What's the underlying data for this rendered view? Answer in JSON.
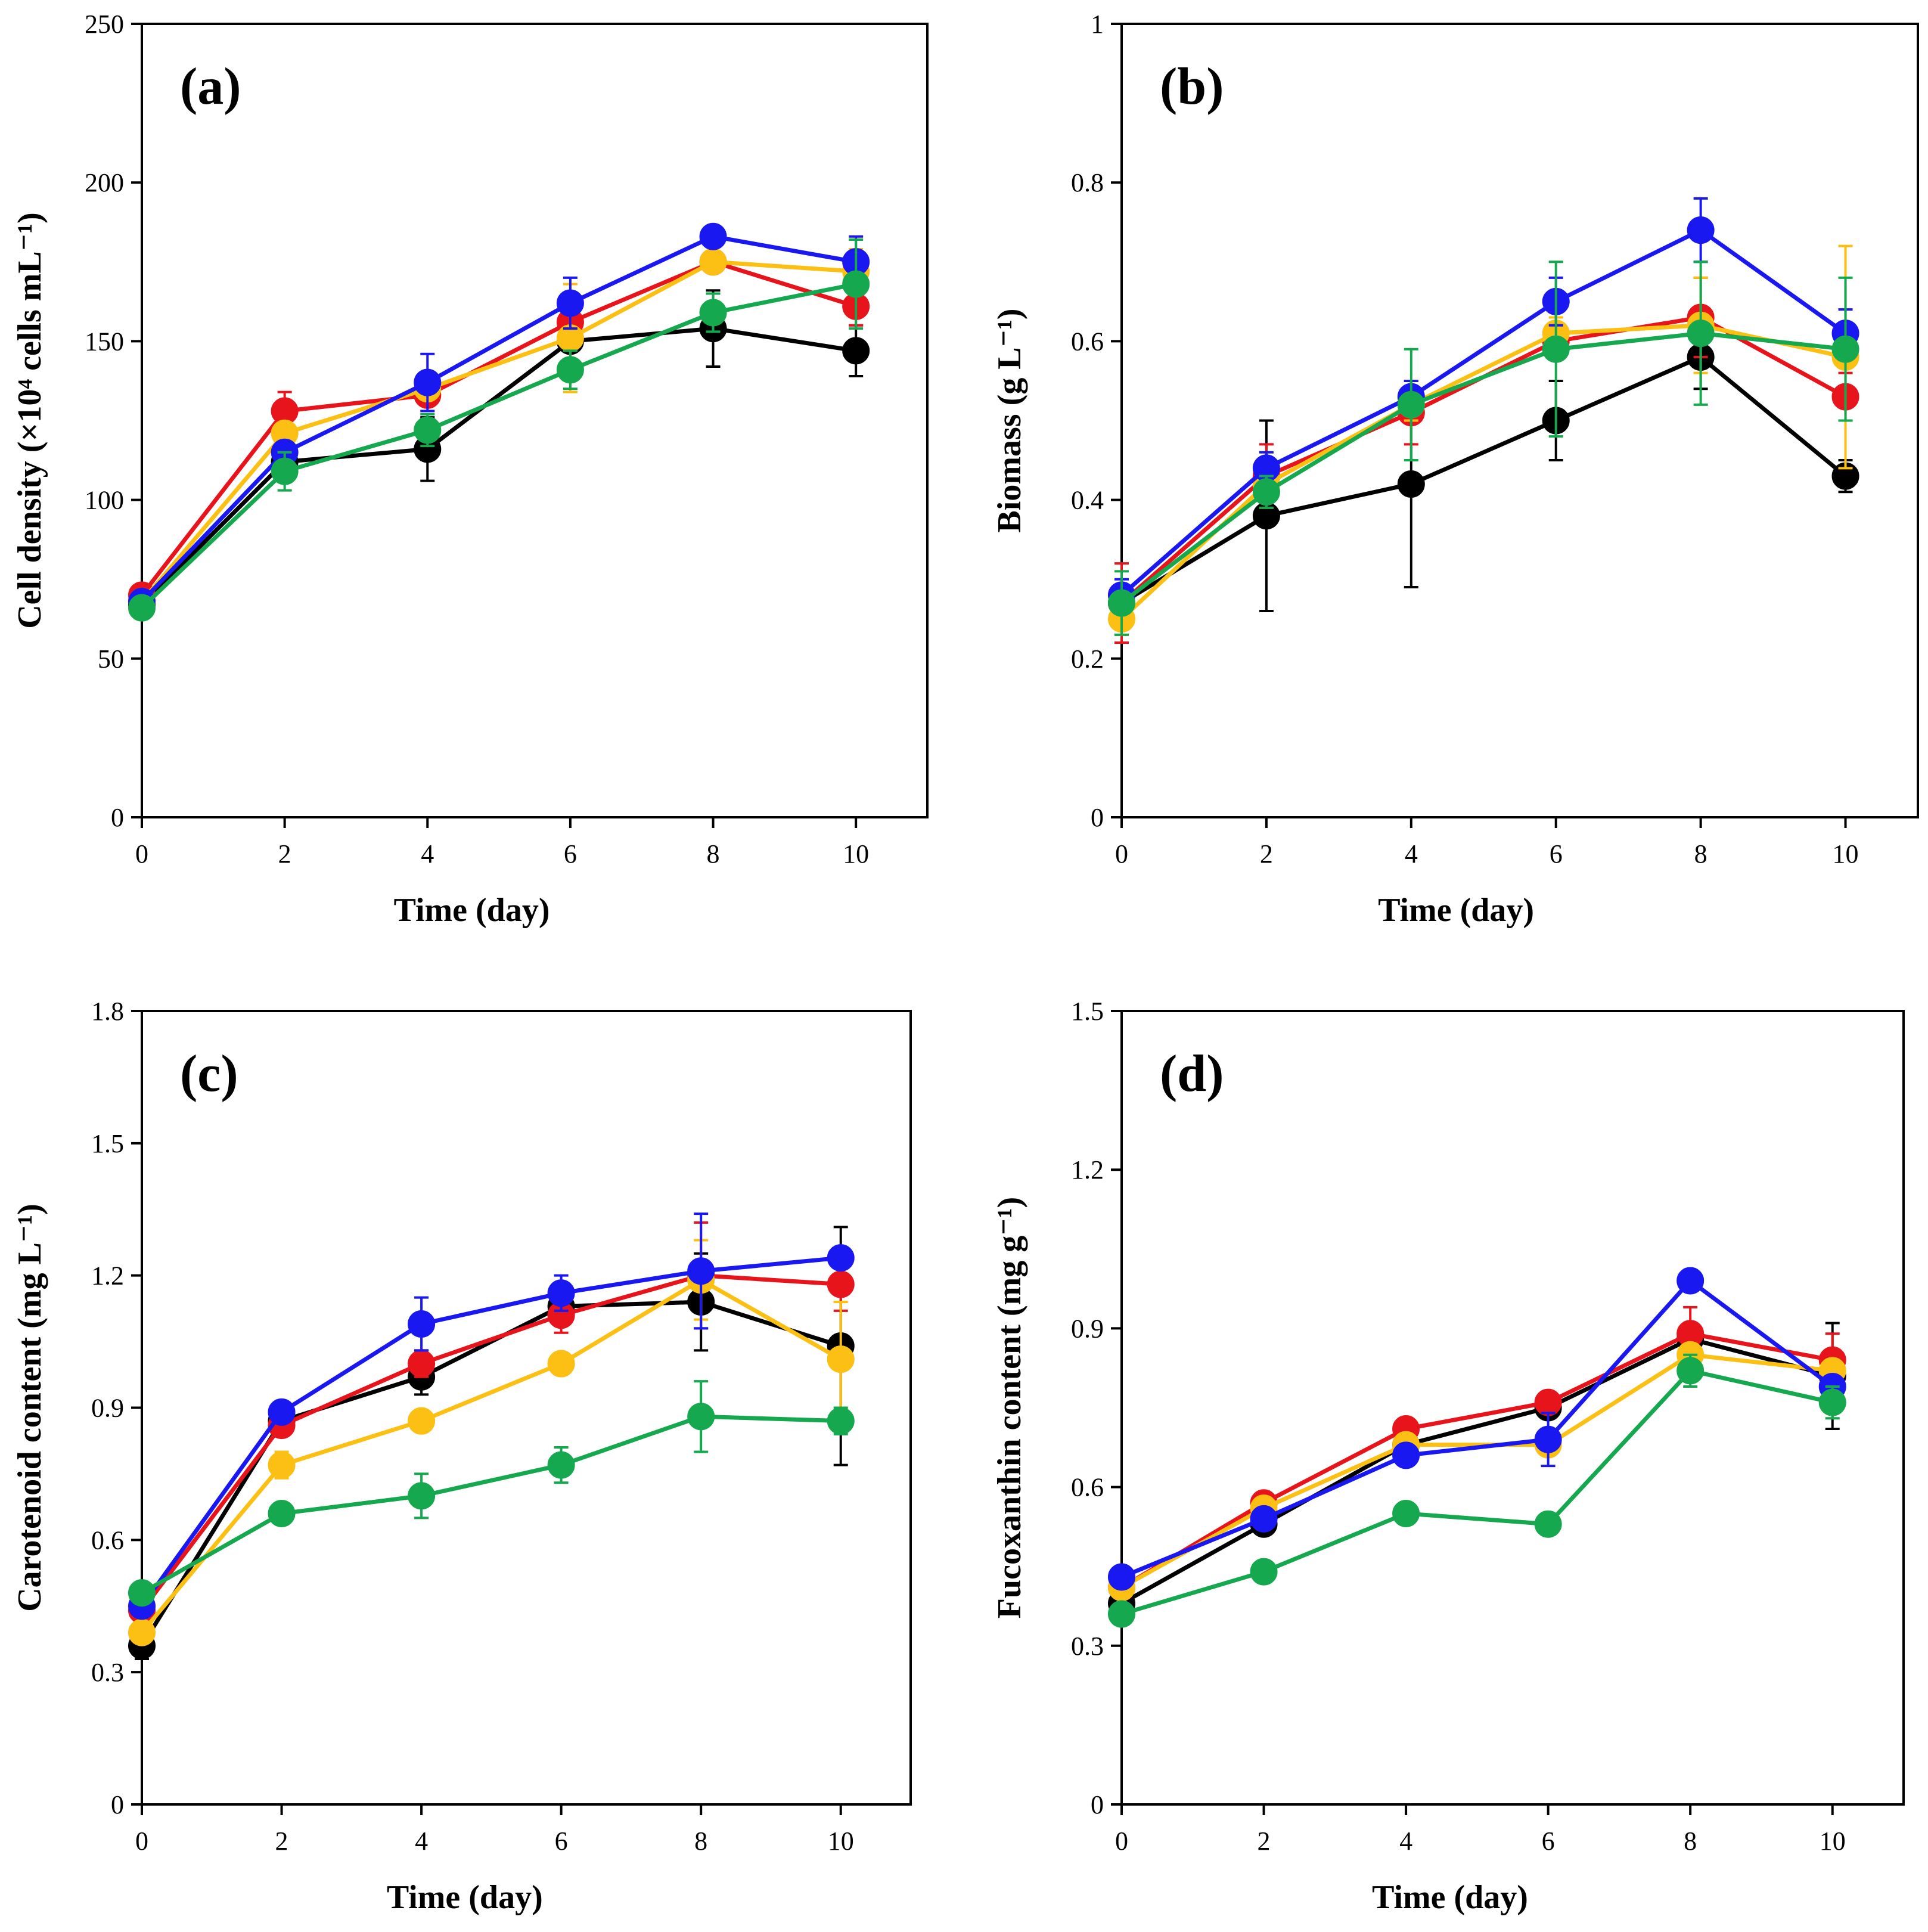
{
  "colors": {
    "Black": "#000000",
    "Red": "#e8141b",
    "Blue": "#1a18f0",
    "Yellow": "#fcbf14",
    "Green": "#16a84e"
  },
  "chart_data": [
    {
      "type": "line",
      "panel": "(a)",
      "xlabel": "Time (day)",
      "ylabel": "Cell density (×10⁴ cells mL⁻¹)",
      "xlim": [
        0,
        11
      ],
      "ylim": [
        0,
        250
      ],
      "xticks": [
        0,
        2,
        4,
        6,
        8,
        10
      ],
      "yticks": [
        0,
        50,
        100,
        150,
        200,
        250
      ],
      "x": [
        0,
        2,
        4,
        6,
        8,
        10
      ],
      "series": [
        {
          "name": "Black",
          "values": [
            67,
            112,
            116,
            150,
            154,
            147
          ],
          "errors": [
            2,
            3,
            10,
            3,
            12,
            8
          ]
        },
        {
          "name": "Red",
          "values": [
            70,
            128,
            133,
            156,
            175,
            161
          ],
          "errors": [
            2,
            6,
            3,
            4,
            3,
            6
          ]
        },
        {
          "name": "Yellow",
          "values": [
            68,
            121,
            135,
            151,
            175,
            172
          ],
          "errors": [
            2,
            3,
            3,
            17,
            3,
            7
          ]
        },
        {
          "name": "Blue",
          "values": [
            68,
            115,
            137,
            162,
            183,
            175
          ],
          "errors": [
            2,
            3,
            9,
            8,
            2,
            8
          ]
        },
        {
          "name": "Green",
          "values": [
            66,
            109,
            122,
            141,
            159,
            168
          ],
          "errors": [
            2,
            6,
            5,
            6,
            6,
            14
          ]
        }
      ]
    },
    {
      "type": "line",
      "panel": "(b)",
      "xlabel": "Time (day)",
      "ylabel": "Biomass (g L⁻¹)",
      "xlim": [
        0,
        11
      ],
      "ylim": [
        0,
        1
      ],
      "xticks": [
        0,
        2,
        4,
        6,
        8,
        10
      ],
      "yticks": [
        0,
        0.2,
        0.4,
        0.6,
        0.8,
        1
      ],
      "x": [
        0,
        2,
        4,
        6,
        8,
        10
      ],
      "series": [
        {
          "name": "Black",
          "values": [
            0.27,
            0.38,
            0.42,
            0.5,
            0.58,
            0.43
          ],
          "errors": [
            0.02,
            0.12,
            0.13,
            0.05,
            0.04,
            0.02
          ]
        },
        {
          "name": "Red",
          "values": [
            0.27,
            0.43,
            0.51,
            0.6,
            0.63,
            0.53
          ],
          "errors": [
            0.05,
            0.04,
            0.04,
            0.02,
            0.05,
            0.03
          ]
        },
        {
          "name": "Yellow",
          "values": [
            0.25,
            0.42,
            0.52,
            0.61,
            0.62,
            0.58
          ],
          "errors": [
            0.02,
            0.02,
            0.02,
            0.02,
            0.06,
            0.14
          ]
        },
        {
          "name": "Blue",
          "values": [
            0.28,
            0.44,
            0.53,
            0.65,
            0.74,
            0.61
          ],
          "errors": [
            0.02,
            0.02,
            0.02,
            0.03,
            0.04,
            0.03
          ]
        },
        {
          "name": "Green",
          "values": [
            0.27,
            0.41,
            0.52,
            0.59,
            0.61,
            0.59
          ],
          "errors": [
            0.04,
            0.02,
            0.07,
            0.11,
            0.09,
            0.09
          ]
        }
      ]
    },
    {
      "type": "line",
      "panel": "(c)",
      "xlabel": "Time (day)",
      "ylabel": "Carotenoid content (mg L⁻¹)",
      "xlim": [
        0,
        11
      ],
      "ylim": [
        0,
        1.8
      ],
      "xticks": [
        0,
        2,
        4,
        6,
        8,
        10
      ],
      "yticks": [
        0,
        0.3,
        0.6,
        0.9,
        1.2,
        1.5,
        1.8
      ],
      "x": [
        0,
        2,
        4,
        6,
        8,
        10
      ],
      "series": [
        {
          "name": "Black",
          "values": [
            0.36,
            0.87,
            0.97,
            1.13,
            1.14,
            1.04
          ],
          "errors": [
            0.03,
            0.02,
            0.04,
            0.04,
            0.11,
            0.27
          ]
        },
        {
          "name": "Red",
          "values": [
            0.44,
            0.86,
            1.0,
            1.11,
            1.2,
            1.18
          ],
          "errors": [
            0.02,
            0.02,
            0.03,
            0.04,
            0.12,
            0.06
          ]
        },
        {
          "name": "Yellow",
          "values": [
            0.39,
            0.77,
            0.87,
            1.0,
            1.19,
            1.01
          ],
          "errors": [
            0.02,
            0.03,
            0.02,
            0.02,
            0.09,
            0.13
          ]
        },
        {
          "name": "Blue",
          "values": [
            0.45,
            0.89,
            1.09,
            1.16,
            1.21,
            1.24
          ],
          "errors": [
            0.02,
            0.02,
            0.06,
            0.04,
            0.13,
            0.02
          ]
        },
        {
          "name": "Green",
          "values": [
            0.48,
            0.66,
            0.7,
            0.77,
            0.88,
            0.87
          ],
          "errors": [
            0.02,
            0.02,
            0.05,
            0.04,
            0.08,
            0.03
          ]
        }
      ]
    },
    {
      "type": "line",
      "panel": "(d)",
      "xlabel": "Time (day)",
      "ylabel": "Fucoxanthin content (mg g⁻¹)",
      "xlim": [
        0,
        11
      ],
      "ylim": [
        0,
        1.5
      ],
      "xticks": [
        0,
        2,
        4,
        6,
        8,
        10
      ],
      "yticks": [
        0,
        0.3,
        0.6,
        0.9,
        1.2,
        1.5
      ],
      "x": [
        0,
        2,
        4,
        6,
        8,
        10
      ],
      "series": [
        {
          "name": "Black",
          "values": [
            0.38,
            0.53,
            0.68,
            0.75,
            0.88,
            0.81
          ],
          "errors": [
            0.02,
            0.02,
            0.02,
            0.02,
            0.02,
            0.1
          ]
        },
        {
          "name": "Red",
          "values": [
            0.41,
            0.57,
            0.71,
            0.76,
            0.89,
            0.84
          ],
          "errors": [
            0.02,
            0.02,
            0.02,
            0.02,
            0.05,
            0.05
          ]
        },
        {
          "name": "Yellow",
          "values": [
            0.41,
            0.56,
            0.68,
            0.68,
            0.85,
            0.82
          ],
          "errors": [
            0.02,
            0.02,
            0.02,
            0.02,
            0.02,
            0.02
          ]
        },
        {
          "name": "Blue",
          "values": [
            0.43,
            0.54,
            0.66,
            0.69,
            0.99,
            0.79
          ],
          "errors": [
            0.02,
            0.02,
            0.02,
            0.05,
            0.02,
            0.02
          ]
        },
        {
          "name": "Green",
          "values": [
            0.36,
            0.44,
            0.55,
            0.53,
            0.82,
            0.76
          ],
          "errors": [
            0.02,
            0.02,
            0.02,
            0.02,
            0.03,
            0.03
          ]
        }
      ]
    }
  ]
}
